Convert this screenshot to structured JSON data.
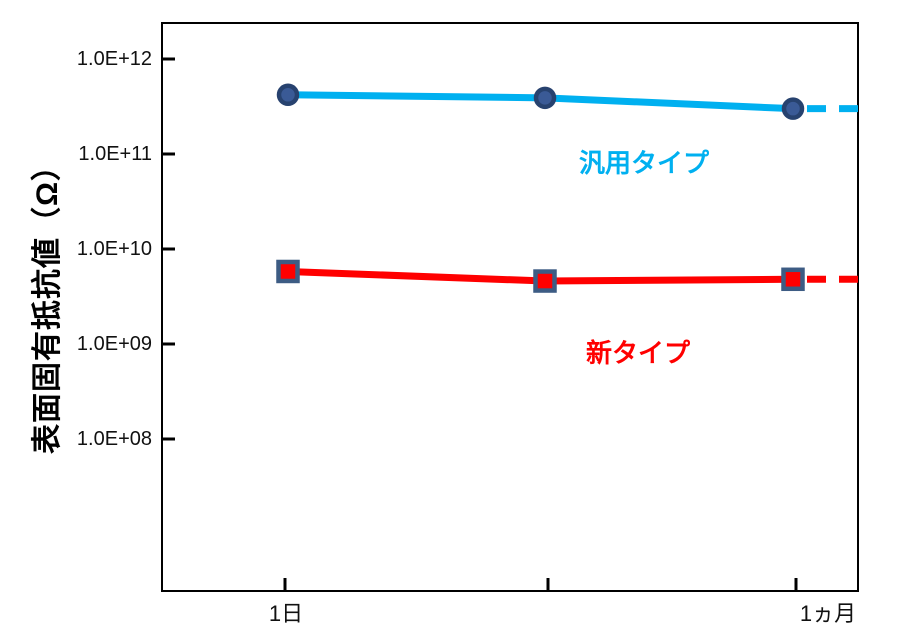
{
  "chart_data": {
    "type": "line",
    "title": "",
    "y_axis": {
      "label": "表面固有抵抗値（Ω）",
      "scale": "log",
      "unit": "Ω",
      "tick_labels": [
        "1.0E+12",
        "1.0E+11",
        "1.0E+10",
        "1.0E+09",
        "1.0E+08"
      ],
      "tick_values": [
        1000000000000.0,
        100000000000.0,
        10000000000.0,
        1000000000.0,
        100000000.0
      ]
    },
    "x_axis": {
      "tick_labels": [
        "1日",
        "",
        "1ヵ月"
      ]
    },
    "grid": false,
    "legend_position": "inline-annotations",
    "series": [
      {
        "name": "汎用タイプ",
        "line_color": "#00B0F0",
        "line_style": "solid-then-dashed",
        "marker": "circle",
        "marker_fill": "#3A5A96",
        "marker_border": "#27426F",
        "values": [
          420000000000.0,
          390000000000.0,
          300000000000.0
        ],
        "dashed_extension": true
      },
      {
        "name": "新タイプ",
        "line_color": "#FF0000",
        "line_style": "solid-then-dashed",
        "marker": "square",
        "marker_fill": "#FF0000",
        "marker_border": "#3D5C84",
        "values": [
          5800000000.0,
          4600000000.0,
          4800000000.0
        ],
        "dashed_extension": true
      }
    ]
  }
}
